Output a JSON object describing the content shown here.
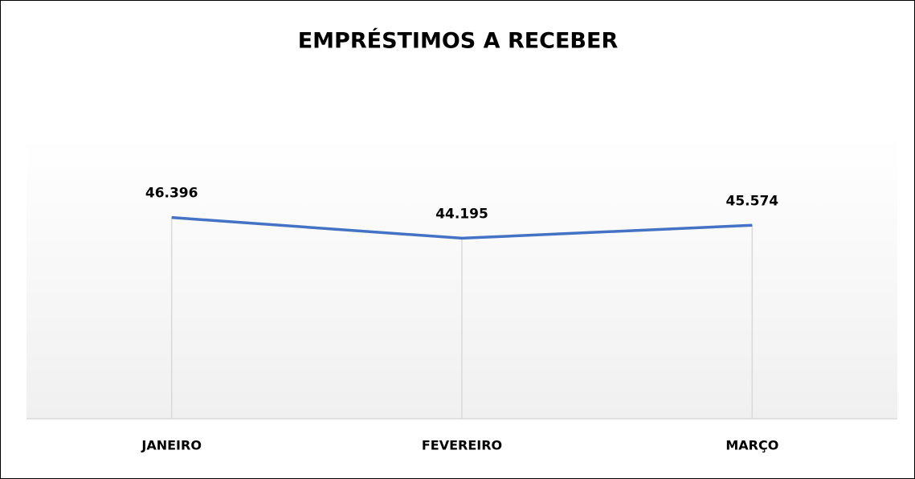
{
  "chart_data": {
    "type": "line",
    "title": "EMPRÉSTIMOS A RECEBER",
    "categories": [
      "JANEIRO",
      "FEVEREIRO",
      "MARÇO"
    ],
    "values": [
      46396,
      44195,
      45574
    ],
    "value_labels": [
      "46.396",
      "44.195",
      "45.574"
    ],
    "color": "#4472c4",
    "ylim": [
      25000,
      55000
    ]
  }
}
